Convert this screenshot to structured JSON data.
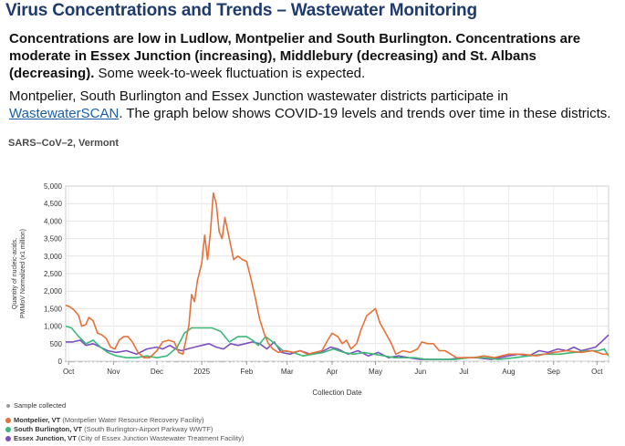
{
  "header": {
    "title": "Virus Concentrations and Trends – Wastewater Monitoring"
  },
  "summary": {
    "bold_text": "Concentrations are low in Ludlow, Montpelier and South Burlington. Concentrations are  moderate in Essex Junction (increasing), Middlebury (decreasing) and St. Albans (decreasing).",
    "plain_text": " Some week-to-week fluctuation is expected."
  },
  "intro": {
    "before_link": "Montpelier, South Burlington and Essex Junction wastewater districts participate in ",
    "link_text": "WastewaterSCAN",
    "after_link": ". The graph below shows COVID-19 levels and trends over time in these districts."
  },
  "legend": {
    "sample_label": "Sample collected",
    "items": [
      {
        "name": "Montpelier, VT",
        "detail": "(Montpelier Water Resource Recovery Facility)",
        "color": "#e8703a"
      },
      {
        "name": "South Burlington, VT",
        "detail": "(South Burlington-Airport Parkway WWTF)",
        "color": "#3cb878"
      },
      {
        "name": "Essex Junction, VT",
        "detail": "(City of Essex Junction Wastewater Treatment Facility)",
        "color": "#7b4fc0"
      }
    ]
  },
  "chart_data": {
    "type": "line",
    "title": "SARS–CoV–2, Vermont",
    "xlabel": "Collection Date",
    "ylabel": [
      "Quantity of nucleic-acids,",
      "PMMoV Normalized (x1 million)"
    ],
    "ylim": [
      0,
      5000
    ],
    "yticks": [
      0,
      500,
      1000,
      1500,
      2000,
      2500,
      3000,
      3500,
      4000,
      4500,
      5000
    ],
    "ytick_labels": [
      "0",
      "500",
      "1,000",
      "1,500",
      "2,000",
      "2,500",
      "3,000",
      "3,500",
      "4,000",
      "4,500",
      "5,000"
    ],
    "xlim": [
      "2024-09-29",
      "2025-10-09"
    ],
    "xticks": [
      {
        "date": "2024-10-01",
        "label": "Oct"
      },
      {
        "date": "2024-11-01",
        "label": "Nov"
      },
      {
        "date": "2024-12-01",
        "label": "Dec"
      },
      {
        "date": "2025-01-01",
        "label": "2025"
      },
      {
        "date": "2025-02-01",
        "label": "Feb"
      },
      {
        "date": "2025-03-01",
        "label": "Mar"
      },
      {
        "date": "2025-04-01",
        "label": "Apr"
      },
      {
        "date": "2025-05-01",
        "label": "May"
      },
      {
        "date": "2025-06-01",
        "label": "Jun"
      },
      {
        "date": "2025-07-01",
        "label": "Jul"
      },
      {
        "date": "2025-08-01",
        "label": "Aug"
      },
      {
        "date": "2025-09-01",
        "label": "Sep"
      },
      {
        "date": "2025-10-01",
        "label": "Oct"
      }
    ],
    "grid": true,
    "legend_position": "bottom-left",
    "series": [
      {
        "name": "Montpelier, VT",
        "color": "#e8703a",
        "points": [
          [
            "2024-09-29",
            1600
          ],
          [
            "2024-10-02",
            1550
          ],
          [
            "2024-10-05",
            1450
          ],
          [
            "2024-10-08",
            1300
          ],
          [
            "2024-10-10",
            1000
          ],
          [
            "2024-10-13",
            1050
          ],
          [
            "2024-10-15",
            1250
          ],
          [
            "2024-10-18",
            1150
          ],
          [
            "2024-10-21",
            800
          ],
          [
            "2024-10-24",
            750
          ],
          [
            "2024-10-27",
            650
          ],
          [
            "2024-10-30",
            400
          ],
          [
            "2024-11-02",
            350
          ],
          [
            "2024-11-05",
            600
          ],
          [
            "2024-11-08",
            700
          ],
          [
            "2024-11-11",
            700
          ],
          [
            "2024-11-14",
            550
          ],
          [
            "2024-11-18",
            250
          ],
          [
            "2024-11-22",
            100
          ],
          [
            "2024-11-26",
            100
          ],
          [
            "2024-12-01",
            300
          ],
          [
            "2024-12-05",
            550
          ],
          [
            "2024-12-09",
            600
          ],
          [
            "2024-12-13",
            550
          ],
          [
            "2024-12-16",
            250
          ],
          [
            "2024-12-19",
            200
          ],
          [
            "2024-12-23",
            1000
          ],
          [
            "2024-12-25",
            1900
          ],
          [
            "2024-12-27",
            1700
          ],
          [
            "2024-12-29",
            2300
          ],
          [
            "2025-01-01",
            2800
          ],
          [
            "2025-01-03",
            3600
          ],
          [
            "2025-01-05",
            2900
          ],
          [
            "2025-01-07",
            3700
          ],
          [
            "2025-01-09",
            4800
          ],
          [
            "2025-01-11",
            4500
          ],
          [
            "2025-01-13",
            3700
          ],
          [
            "2025-01-15",
            3500
          ],
          [
            "2025-01-17",
            4100
          ],
          [
            "2025-01-20",
            3500
          ],
          [
            "2025-01-23",
            2900
          ],
          [
            "2025-01-26",
            3000
          ],
          [
            "2025-01-29",
            2900
          ],
          [
            "2025-02-01",
            2850
          ],
          [
            "2025-02-04",
            2350
          ],
          [
            "2025-02-07",
            1800
          ],
          [
            "2025-02-10",
            1200
          ],
          [
            "2025-02-13",
            800
          ],
          [
            "2025-02-16",
            500
          ],
          [
            "2025-02-19",
            350
          ],
          [
            "2025-02-23",
            250
          ],
          [
            "2025-02-28",
            300
          ],
          [
            "2025-03-05",
            250
          ],
          [
            "2025-03-10",
            300
          ],
          [
            "2025-03-15",
            200
          ],
          [
            "2025-03-20",
            250
          ],
          [
            "2025-03-25",
            300
          ],
          [
            "2025-03-29",
            600
          ],
          [
            "2025-04-01",
            800
          ],
          [
            "2025-04-05",
            700
          ],
          [
            "2025-04-08",
            500
          ],
          [
            "2025-04-11",
            600
          ],
          [
            "2025-04-14",
            350
          ],
          [
            "2025-04-18",
            500
          ],
          [
            "2025-04-21",
            900
          ],
          [
            "2025-04-25",
            1300
          ],
          [
            "2025-04-28",
            1400
          ],
          [
            "2025-05-01",
            1500
          ],
          [
            "2025-05-04",
            1100
          ],
          [
            "2025-05-08",
            800
          ],
          [
            "2025-05-12",
            500
          ],
          [
            "2025-05-15",
            200
          ],
          [
            "2025-05-20",
            300
          ],
          [
            "2025-05-25",
            250
          ],
          [
            "2025-05-30",
            350
          ],
          [
            "2025-06-02",
            550
          ],
          [
            "2025-06-06",
            500
          ],
          [
            "2025-06-10",
            500
          ],
          [
            "2025-06-14",
            300
          ],
          [
            "2025-06-18",
            300
          ],
          [
            "2025-06-22",
            200
          ],
          [
            "2025-06-26",
            100
          ],
          [
            "2025-07-01",
            100
          ],
          [
            "2025-07-08",
            100
          ],
          [
            "2025-07-15",
            150
          ],
          [
            "2025-07-22",
            100
          ],
          [
            "2025-08-01",
            200
          ],
          [
            "2025-08-10",
            200
          ],
          [
            "2025-08-20",
            150
          ],
          [
            "2025-09-01",
            250
          ],
          [
            "2025-09-10",
            300
          ],
          [
            "2025-09-20",
            250
          ],
          [
            "2025-09-28",
            300
          ],
          [
            "2025-10-05",
            200
          ],
          [
            "2025-10-09",
            200
          ]
        ]
      },
      {
        "name": "South Burlington, VT",
        "color": "#3cb878",
        "points": [
          [
            "2024-09-29",
            1000
          ],
          [
            "2024-10-03",
            950
          ],
          [
            "2024-10-08",
            700
          ],
          [
            "2024-10-13",
            500
          ],
          [
            "2024-10-18",
            600
          ],
          [
            "2024-10-23",
            400
          ],
          [
            "2024-10-28",
            250
          ],
          [
            "2024-11-03",
            150
          ],
          [
            "2024-11-10",
            100
          ],
          [
            "2024-11-17",
            100
          ],
          [
            "2024-11-24",
            150
          ],
          [
            "2024-12-01",
            100
          ],
          [
            "2024-12-08",
            150
          ],
          [
            "2024-12-15",
            400
          ],
          [
            "2024-12-20",
            800
          ],
          [
            "2024-12-25",
            950
          ],
          [
            "2025-01-01",
            950
          ],
          [
            "2025-01-08",
            950
          ],
          [
            "2025-01-14",
            850
          ],
          [
            "2025-01-20",
            550
          ],
          [
            "2025-01-26",
            700
          ],
          [
            "2025-02-01",
            700
          ],
          [
            "2025-02-05",
            600
          ],
          [
            "2025-02-09",
            450
          ],
          [
            "2025-02-14",
            700
          ],
          [
            "2025-02-19",
            550
          ],
          [
            "2025-02-26",
            300
          ],
          [
            "2025-03-05",
            250
          ],
          [
            "2025-03-12",
            150
          ],
          [
            "2025-03-19",
            200
          ],
          [
            "2025-03-26",
            250
          ],
          [
            "2025-04-02",
            350
          ],
          [
            "2025-04-09",
            250
          ],
          [
            "2025-04-16",
            200
          ],
          [
            "2025-04-23",
            250
          ],
          [
            "2025-04-30",
            200
          ],
          [
            "2025-05-07",
            150
          ],
          [
            "2025-05-14",
            100
          ],
          [
            "2025-05-21",
            100
          ],
          [
            "2025-05-28",
            100
          ],
          [
            "2025-06-05",
            50
          ],
          [
            "2025-06-15",
            50
          ],
          [
            "2025-06-25",
            50
          ],
          [
            "2025-07-05",
            100
          ],
          [
            "2025-07-15",
            100
          ],
          [
            "2025-07-25",
            50
          ],
          [
            "2025-08-05",
            100
          ],
          [
            "2025-08-15",
            150
          ],
          [
            "2025-08-25",
            200
          ],
          [
            "2025-09-05",
            200
          ],
          [
            "2025-09-15",
            250
          ],
          [
            "2025-09-25",
            300
          ],
          [
            "2025-10-02",
            300
          ],
          [
            "2025-10-06",
            350
          ],
          [
            "2025-10-09",
            150
          ]
        ]
      },
      {
        "name": "Essex Junction, VT",
        "color": "#7b4fc0",
        "points": [
          [
            "2024-09-29",
            550
          ],
          [
            "2024-10-04",
            550
          ],
          [
            "2024-10-09",
            600
          ],
          [
            "2024-10-13",
            450
          ],
          [
            "2024-10-18",
            500
          ],
          [
            "2024-10-23",
            400
          ],
          [
            "2024-10-28",
            300
          ],
          [
            "2024-11-03",
            250
          ],
          [
            "2024-11-10",
            300
          ],
          [
            "2024-11-17",
            200
          ],
          [
            "2024-11-24",
            350
          ],
          [
            "2024-12-01",
            400
          ],
          [
            "2024-12-05",
            350
          ],
          [
            "2024-12-10",
            450
          ],
          [
            "2024-12-14",
            350
          ],
          [
            "2024-12-18",
            300
          ],
          [
            "2024-12-22",
            350
          ],
          [
            "2024-12-27",
            400
          ],
          [
            "2025-01-01",
            450
          ],
          [
            "2025-01-06",
            500
          ],
          [
            "2025-01-11",
            400
          ],
          [
            "2025-01-16",
            350
          ],
          [
            "2025-01-21",
            500
          ],
          [
            "2025-01-26",
            450
          ],
          [
            "2025-01-31",
            500
          ],
          [
            "2025-02-05",
            550
          ],
          [
            "2025-02-10",
            500
          ],
          [
            "2025-02-15",
            350
          ],
          [
            "2025-02-20",
            550
          ],
          [
            "2025-02-25",
            250
          ],
          [
            "2025-03-03",
            200
          ],
          [
            "2025-03-10",
            300
          ],
          [
            "2025-03-17",
            200
          ],
          [
            "2025-03-24",
            250
          ],
          [
            "2025-03-31",
            400
          ],
          [
            "2025-04-05",
            350
          ],
          [
            "2025-04-12",
            200
          ],
          [
            "2025-04-19",
            300
          ],
          [
            "2025-04-26",
            150
          ],
          [
            "2025-05-03",
            250
          ],
          [
            "2025-05-10",
            100
          ],
          [
            "2025-05-17",
            150
          ],
          [
            "2025-05-24",
            100
          ],
          [
            "2025-06-01",
            50
          ],
          [
            "2025-06-10",
            50
          ],
          [
            "2025-06-20",
            50
          ],
          [
            "2025-07-01",
            100
          ],
          [
            "2025-07-10",
            100
          ],
          [
            "2025-07-20",
            50
          ],
          [
            "2025-08-01",
            150
          ],
          [
            "2025-08-08",
            200
          ],
          [
            "2025-08-15",
            150
          ],
          [
            "2025-08-22",
            300
          ],
          [
            "2025-08-28",
            250
          ],
          [
            "2025-09-04",
            350
          ],
          [
            "2025-09-10",
            300
          ],
          [
            "2025-09-15",
            400
          ],
          [
            "2025-09-20",
            300
          ],
          [
            "2025-09-25",
            350
          ],
          [
            "2025-09-30",
            400
          ],
          [
            "2025-10-04",
            550
          ],
          [
            "2025-10-09",
            750
          ]
        ]
      }
    ]
  }
}
